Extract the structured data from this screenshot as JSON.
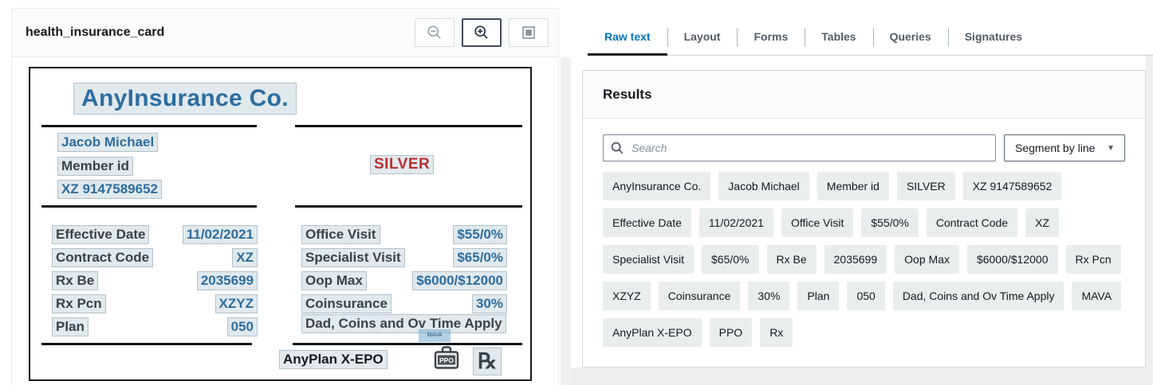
{
  "colors": {
    "accent_blue": "#0073bb",
    "card_blue": "#2d6d9f",
    "silver_red": "#bb2f32",
    "text_dark": "#16191f",
    "chip_bg": "#eaeded"
  },
  "left_panel": {
    "title": "health_insurance_card"
  },
  "icons": {
    "zoom_out": "magnifier-minus",
    "zoom_in": "magnifier-plus",
    "fit_view": "filled-square",
    "search": "magnifier",
    "dropdown_caret": "▼",
    "rx_symbol": "℞",
    "ppo_briefcase": "briefcase"
  },
  "card": {
    "company": "AnyInsurance Co.",
    "member_name": "Jacob Michael",
    "member_id_label": "Member id",
    "member_id": "XZ 9147589652",
    "tier": "SILVER",
    "left_fields": [
      {
        "label": "Effective Date",
        "value": "11/02/2021"
      },
      {
        "label": "Contract Code",
        "value": "XZ"
      },
      {
        "label": "Rx Be",
        "value": "2035699"
      },
      {
        "label": "Rx Pcn",
        "value": "XZYZ"
      },
      {
        "label": "Plan",
        "value": "050"
      }
    ],
    "right_fields": [
      {
        "label": "Office Visit",
        "value": "$55/0%"
      },
      {
        "label": "Specialist Visit",
        "value": "$65/0%"
      },
      {
        "label": "Oop Max",
        "value": "$6000/$12000"
      },
      {
        "label": "Coinsurance",
        "value": "30%"
      }
    ],
    "footnote": "Dad, Coins and Ov Time Apply",
    "tiny_note": "MAVA",
    "plan_name": "AnyPlan X-EPO",
    "ppo_label": "PPO"
  },
  "tabs": [
    {
      "label": "Raw text",
      "active": true
    },
    {
      "label": "Layout",
      "active": false
    },
    {
      "label": "Forms",
      "active": false
    },
    {
      "label": "Tables",
      "active": false
    },
    {
      "label": "Queries",
      "active": false
    },
    {
      "label": "Signatures",
      "active": false
    }
  ],
  "results": {
    "heading": "Results",
    "search_placeholder": "Search",
    "segment_label": "Segment by line",
    "chip_rows": [
      [
        "AnyInsurance Co.",
        "Jacob Michael",
        "Member id",
        "SILVER",
        "XZ 9147589652"
      ],
      [
        "Effective Date",
        "11/02/2021",
        "Office Visit",
        "$55/0%",
        "Contract Code",
        "XZ"
      ],
      [
        "Specialist Visit",
        "$65/0%",
        "Rx Be",
        "2035699",
        "Oop Max",
        "$6000/$12000",
        "Rx Pcn"
      ],
      [
        "XZYZ",
        "Coinsurance",
        "30%",
        "Plan",
        "050",
        "Dad, Coins and Ov Time Apply",
        "MAVA"
      ],
      [
        "AnyPlan X-EPO",
        "PPO",
        "Rx"
      ]
    ]
  }
}
